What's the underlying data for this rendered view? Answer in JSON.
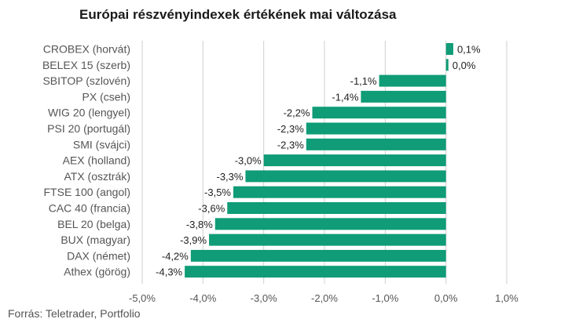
{
  "chart_data": {
    "type": "bar",
    "orientation": "horizontal",
    "title": "Európai részvényindexek értékének mai változása",
    "source": "Forrás: Teletrader, Portfolio",
    "categories": [
      "CROBEX (horvát)",
      "BELEX 15 (szerb)",
      "SBITOP (szlovén)",
      "PX (cseh)",
      "WIG 20 (lengyel)",
      "PSI 20 (portugál)",
      "SMI (svájci)",
      "AEX (holland)",
      "ATX (osztrák)",
      "FTSE 100 (angol)",
      "CAC 40 (francia)",
      "BEL 20 (belga)",
      "BUX (magyar)",
      "DAX (német)",
      "Athex (görög)"
    ],
    "values": [
      0.12,
      0.04,
      -1.1,
      -1.4,
      -2.2,
      -2.3,
      -2.3,
      -3.0,
      -3.3,
      -3.5,
      -3.6,
      -3.8,
      -3.9,
      -4.2,
      -4.3
    ],
    "data_labels": [
      "0,1%",
      "0,0%",
      "-1,1%",
      "-1,4%",
      "-2,2%",
      "-2,3%",
      "-2,3%",
      "-3,0%",
      "-3,3%",
      "-3,5%",
      "-3,6%",
      "-3,8%",
      "-3,9%",
      "-4,2%",
      "-4,3%"
    ],
    "x_ticks": [
      -5,
      -4,
      -3,
      -2,
      -1,
      0,
      1
    ],
    "x_tick_labels": [
      "-5,0%",
      "-4,0%",
      "-3,0%",
      "-2,0%",
      "-1,0%",
      "0,0%",
      "1,0%"
    ],
    "xlim": [
      -5,
      1
    ],
    "xlabel": "",
    "ylabel": "",
    "grid": "vertical",
    "bar_color": "#0f9c76",
    "grid_color": "#cfcfcf"
  }
}
